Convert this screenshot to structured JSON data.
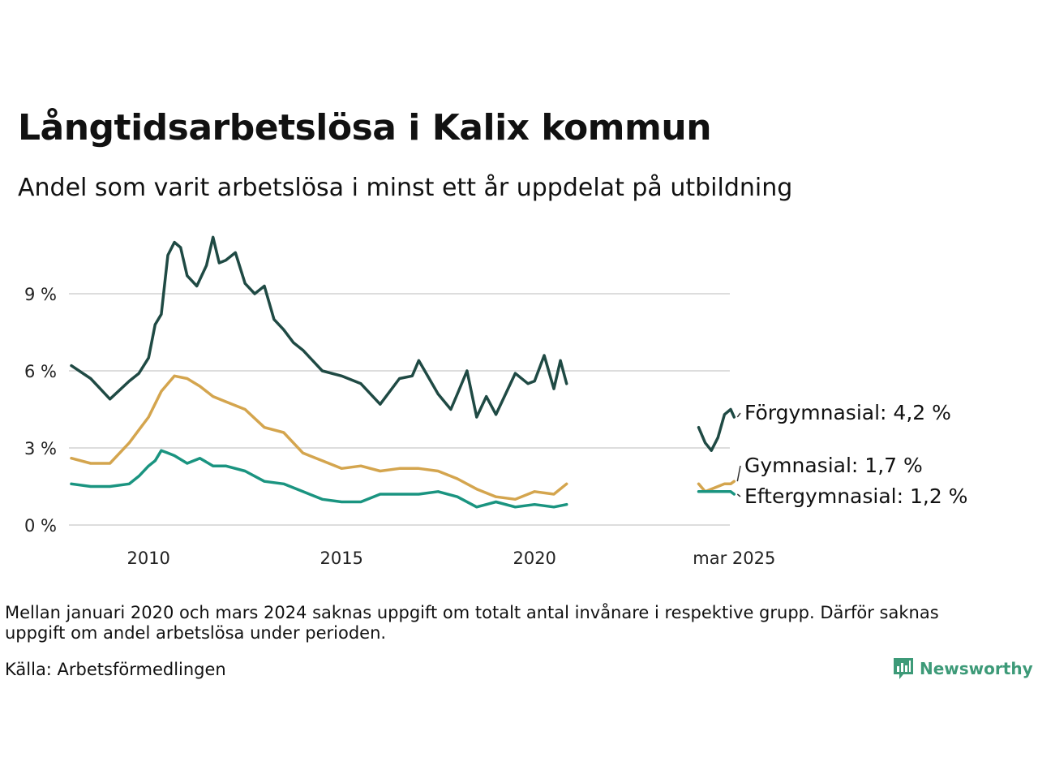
{
  "header": {
    "title": "Långtidsarbetslösa i Kalix kommun",
    "subtitle": "Andel som varit arbetslösa i minst ett år uppdelat på utbildning"
  },
  "footer": {
    "note": "Mellan januari 2020 och mars 2024 saknas uppgift om totalt antal invånare i respektive grupp. Därför saknas uppgift om andel arbetslösa under perioden.",
    "source": "Källa: Arbetsförmedlingen",
    "brand": "Newsworthy"
  },
  "colors": {
    "forgymnasial": "#1f4a44",
    "gymnasial": "#d4a54e",
    "eftergymnasial": "#1a9480",
    "grid": "#dddddd",
    "brand": "#3d9a78"
  },
  "chart_data": {
    "type": "line",
    "title": "Långtidsarbetslösa i Kalix kommun",
    "subtitle": "Andel som varit arbetslösa i minst ett år uppdelat på utbildning",
    "ylabel": "",
    "xlabel": "",
    "y_unit": "%",
    "ylim": [
      0,
      11.2
    ],
    "yticks": [
      0,
      3,
      6,
      9
    ],
    "ytick_labels": [
      "0 %",
      "3 %",
      "6 %",
      "9 %"
    ],
    "xticks": [
      2010,
      2015,
      2020,
      2025.17
    ],
    "xtick_labels": [
      "2010",
      "2015",
      "2020",
      "mar 2025"
    ],
    "grid": true,
    "legend": "end-labels",
    "gap": [
      "2020-01",
      "2024-03"
    ],
    "series": [
      {
        "name": "Förgymnasial",
        "end_label": "Förgymnasial: 4,2 %",
        "segments": [
          {
            "x": [
              2008.0,
              2008.5,
              2009.0,
              2009.5,
              2009.75,
              2010.0,
              2010.17,
              2010.33,
              2010.5,
              2010.67,
              2010.83,
              2011.0,
              2011.25,
              2011.5,
              2011.67,
              2011.83,
              2012.0,
              2012.25,
              2012.5,
              2012.75,
              2013.0,
              2013.25,
              2013.5,
              2013.75,
              2014.0,
              2014.5,
              2015.0,
              2015.5,
              2016.0,
              2016.5,
              2016.83,
              2017.0,
              2017.5,
              2017.83,
              2018.0,
              2018.25,
              2018.5,
              2018.75,
              2019.0,
              2019.5,
              2019.83,
              2020.0,
              2020.25,
              2020.5,
              2020.67,
              2020.83
            ],
            "y": [
              6.2,
              5.7,
              4.9,
              5.6,
              5.9,
              6.5,
              7.8,
              8.2,
              10.5,
              11.0,
              10.8,
              9.7,
              9.3,
              10.1,
              11.2,
              10.2,
              10.3,
              10.6,
              9.4,
              9.0,
              9.3,
              8.0,
              7.6,
              7.1,
              6.8,
              6.0,
              5.8,
              5.5,
              4.7,
              5.7,
              5.8,
              6.4,
              5.1,
              4.5,
              5.1,
              6.0,
              4.2,
              5.0,
              4.3,
              5.9,
              5.5,
              5.6,
              6.6,
              5.3,
              6.4,
              5.5
            ]
          },
          {
            "x": [
              2024.25,
              2024.42,
              2024.58,
              2024.75,
              2024.92,
              2025.08,
              2025.17
            ],
            "y": [
              3.8,
              3.2,
              2.9,
              3.4,
              4.3,
              4.5,
              4.2
            ]
          }
        ]
      },
      {
        "name": "Gymnasial",
        "end_label": "Gymnasial: 1,7 %",
        "segments": [
          {
            "x": [
              2008.0,
              2008.5,
              2009.0,
              2009.5,
              2009.75,
              2010.0,
              2010.33,
              2010.67,
              2011.0,
              2011.33,
              2011.67,
              2012.0,
              2012.5,
              2013.0,
              2013.5,
              2014.0,
              2014.5,
              2015.0,
              2015.5,
              2016.0,
              2016.5,
              2017.0,
              2017.5,
              2018.0,
              2018.5,
              2019.0,
              2019.5,
              2020.0,
              2020.5,
              2020.83
            ],
            "y": [
              2.6,
              2.4,
              2.4,
              3.2,
              3.7,
              4.2,
              5.2,
              5.8,
              5.7,
              5.4,
              5.0,
              4.8,
              4.5,
              3.8,
              3.6,
              2.8,
              2.5,
              2.2,
              2.3,
              2.1,
              2.2,
              2.2,
              2.1,
              1.8,
              1.4,
              1.1,
              1.0,
              1.3,
              1.2,
              1.6
            ]
          },
          {
            "x": [
              2024.25,
              2024.42,
              2024.58,
              2024.75,
              2024.92,
              2025.08,
              2025.17
            ],
            "y": [
              1.6,
              1.3,
              1.4,
              1.5,
              1.6,
              1.6,
              1.7
            ]
          }
        ]
      },
      {
        "name": "Eftergymnasial",
        "end_label": "Eftergymnasial: 1,2 %",
        "segments": [
          {
            "x": [
              2008.0,
              2008.5,
              2009.0,
              2009.5,
              2009.75,
              2010.0,
              2010.17,
              2010.33,
              2010.5,
              2010.67,
              2011.0,
              2011.33,
              2011.67,
              2012.0,
              2012.5,
              2013.0,
              2013.5,
              2014.0,
              2014.5,
              2015.0,
              2015.5,
              2016.0,
              2016.5,
              2017.0,
              2017.5,
              2018.0,
              2018.5,
              2018.75,
              2019.0,
              2019.5,
              2020.0,
              2020.5,
              2020.83
            ],
            "y": [
              1.6,
              1.5,
              1.5,
              1.6,
              1.9,
              2.3,
              2.5,
              2.9,
              2.8,
              2.7,
              2.4,
              2.6,
              2.3,
              2.3,
              2.1,
              1.7,
              1.6,
              1.3,
              1.0,
              0.9,
              0.9,
              1.2,
              1.2,
              1.2,
              1.3,
              1.1,
              0.7,
              0.8,
              0.9,
              0.7,
              0.8,
              0.7,
              0.8
            ]
          },
          {
            "x": [
              2024.25,
              2024.42,
              2024.58,
              2024.75,
              2024.92,
              2025.08,
              2025.17
            ],
            "y": [
              1.3,
              1.3,
              1.3,
              1.3,
              1.3,
              1.3,
              1.2
            ]
          }
        ]
      }
    ]
  }
}
